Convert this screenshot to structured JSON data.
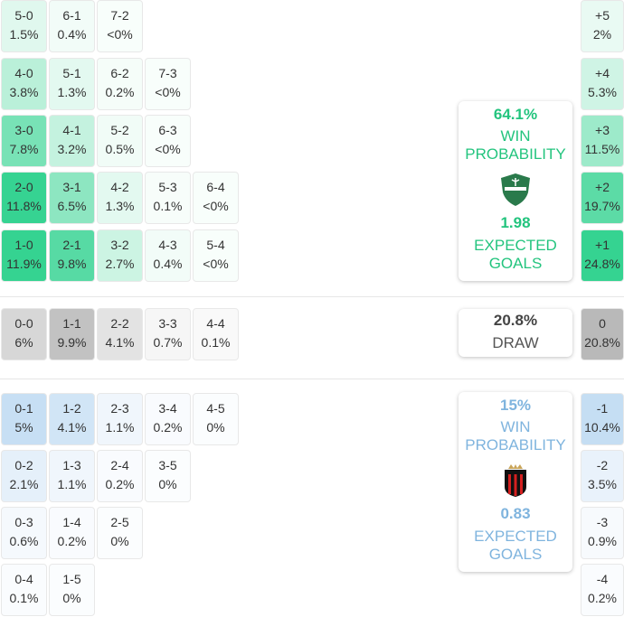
{
  "home_rows": [
    [
      {
        "s": "5-0",
        "p": "1.5%"
      },
      {
        "s": "6-1",
        "p": "0.4%"
      },
      {
        "s": "7-2",
        "p": "<0%"
      }
    ],
    [
      {
        "s": "4-0",
        "p": "3.8%"
      },
      {
        "s": "5-1",
        "p": "1.3%"
      },
      {
        "s": "6-2",
        "p": "0.2%"
      },
      {
        "s": "7-3",
        "p": "<0%"
      }
    ],
    [
      {
        "s": "3-0",
        "p": "7.8%"
      },
      {
        "s": "4-1",
        "p": "3.2%"
      },
      {
        "s": "5-2",
        "p": "0.5%"
      },
      {
        "s": "6-3",
        "p": "<0%"
      }
    ],
    [
      {
        "s": "2-0",
        "p": "11.8%"
      },
      {
        "s": "3-1",
        "p": "6.5%"
      },
      {
        "s": "4-2",
        "p": "1.3%"
      },
      {
        "s": "5-3",
        "p": "0.1%"
      },
      {
        "s": "6-4",
        "p": "<0%"
      }
    ],
    [
      {
        "s": "1-0",
        "p": "11.9%"
      },
      {
        "s": "2-1",
        "p": "9.8%"
      },
      {
        "s": "3-2",
        "p": "2.7%"
      },
      {
        "s": "4-3",
        "p": "0.4%"
      },
      {
        "s": "5-4",
        "p": "<0%"
      }
    ]
  ],
  "draw_row": [
    {
      "s": "0-0",
      "p": "6%"
    },
    {
      "s": "1-1",
      "p": "9.9%"
    },
    {
      "s": "2-2",
      "p": "4.1%"
    },
    {
      "s": "3-3",
      "p": "0.7%"
    },
    {
      "s": "4-4",
      "p": "0.1%"
    }
  ],
  "away_rows": [
    [
      {
        "s": "0-1",
        "p": "5%"
      },
      {
        "s": "1-2",
        "p": "4.1%"
      },
      {
        "s": "2-3",
        "p": "1.1%"
      },
      {
        "s": "3-4",
        "p": "0.2%"
      },
      {
        "s": "4-5",
        "p": "0%"
      }
    ],
    [
      {
        "s": "0-2",
        "p": "2.1%"
      },
      {
        "s": "1-3",
        "p": "1.1%"
      },
      {
        "s": "2-4",
        "p": "0.2%"
      },
      {
        "s": "3-5",
        "p": "0%"
      }
    ],
    [
      {
        "s": "0-3",
        "p": "0.6%"
      },
      {
        "s": "1-4",
        "p": "0.2%"
      },
      {
        "s": "2-5",
        "p": "0%"
      }
    ],
    [
      {
        "s": "0-4",
        "p": "0.1%"
      },
      {
        "s": "1-5",
        "p": "0%"
      }
    ]
  ],
  "margins_home": [
    {
      "s": "+5",
      "p": "2%"
    },
    {
      "s": "+4",
      "p": "5.3%"
    },
    {
      "s": "+3",
      "p": "11.5%"
    },
    {
      "s": "+2",
      "p": "19.7%"
    },
    {
      "s": "+1",
      "p": "24.8%"
    }
  ],
  "margin_draw": {
    "s": "0",
    "p": "20.8%"
  },
  "margins_away": [
    {
      "s": "-1",
      "p": "10.4%"
    },
    {
      "s": "-2",
      "p": "3.5%"
    },
    {
      "s": "-3",
      "p": "0.9%"
    },
    {
      "s": "-4",
      "p": "0.2%"
    }
  ],
  "home_card": {
    "win_pct": "64.1%",
    "win_label_1": "WIN",
    "win_label_2": "PROBABILITY",
    "xg": "1.98",
    "xg_label_1": "EXPECTED",
    "xg_label_2": "GOALS",
    "crest_icon": "green-shield-crest",
    "color": "#23c47e"
  },
  "draw_card": {
    "pct": "20.8%",
    "label": "DRAW"
  },
  "away_card": {
    "win_pct": "15%",
    "win_label_1": "WIN",
    "win_label_2": "PROBABILITY",
    "xg": "0.83",
    "xg_label_1": "EXPECTED",
    "xg_label_2": "GOALS",
    "crest_icon": "red-black-striped-crest",
    "color": "#7fb4de"
  }
}
